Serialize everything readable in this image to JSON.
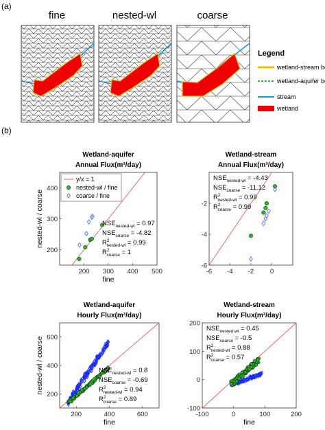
{
  "panel_a": {
    "label": "(a)",
    "mesh_titles": [
      "fine",
      "nested-wl",
      "coarse"
    ],
    "legend": {
      "title": "Legend",
      "items": [
        {
          "label": "wetland-stream boundary",
          "color": "#e8c400"
        },
        {
          "label": "wetland-aquifer boundary",
          "color": "#30c030"
        },
        {
          "label": "stream",
          "color": "#1f8fd0"
        },
        {
          "label": "wetland",
          "color": "#ee0000"
        }
      ]
    }
  },
  "panel_b": {
    "label": "(b)"
  },
  "chart_data": [
    {
      "type": "scatter",
      "title": "Wetland-aquifer",
      "subtitle": "Annual Flux(m³/day)",
      "xlabel": "fine",
      "ylabel": "nested-wl / coarse",
      "xlim": [
        100,
        500
      ],
      "ylim": [
        150,
        450
      ],
      "xticks": [
        200,
        300,
        400,
        500
      ],
      "yticks": [
        200,
        300,
        400
      ],
      "legend": {
        "placement": "top-left",
        "entries": [
          "y/x = 1",
          "nested-wl / fine",
          "coarse / fine"
        ]
      },
      "series": [
        {
          "name": "nested-wl / fine",
          "marker": "circle",
          "color": "#2ab52a",
          "points": [
            [
              180,
              170
            ],
            [
              205,
              208
            ],
            [
              225,
              232
            ],
            [
              232,
              235
            ],
            [
              275,
              280
            ]
          ]
        },
        {
          "name": "coarse / fine",
          "marker": "diamond",
          "color": "#4060ff",
          "points": [
            [
              182,
              215
            ],
            [
              210,
              252
            ],
            [
              220,
              290
            ],
            [
              232,
              305
            ],
            [
              235,
              308
            ],
            [
              280,
              373
            ]
          ]
        }
      ],
      "annotations": [
        {
          "main": "NSE",
          "sub": "nested-wl",
          "value": " = 0.97"
        },
        {
          "main": "NSE",
          "sub": "coarse",
          "value": " = -4.82"
        },
        {
          "main": "R",
          "sup": "2",
          "sub": "nested-wl",
          "value": " = 0.99"
        },
        {
          "main": "R",
          "sup": "2",
          "sub": "coarse",
          "value": " = 1"
        }
      ]
    },
    {
      "type": "scatter",
      "title": "Wetland-stream",
      "subtitle": "Annual Flux(m³/day)",
      "xlabel": "",
      "ylabel": "",
      "xlim": [
        -6,
        2
      ],
      "ylim": [
        -6,
        0
      ],
      "xticks": [
        -6,
        -4,
        -2,
        0
      ],
      "yticks": [
        -6,
        -4,
        -2
      ],
      "series": [
        {
          "name": "nested-wl / fine",
          "marker": "circle",
          "color": "#2ab52a",
          "points": [
            [
              -2,
              -4.1
            ],
            [
              -0.8,
              -2.6
            ],
            [
              -0.6,
              -2.3
            ],
            [
              -0.5,
              -2.0
            ],
            [
              0.3,
              -0.9
            ]
          ]
        },
        {
          "name": "coarse / fine",
          "marker": "diamond",
          "color": "#4060ff",
          "points": [
            [
              -2,
              -5.6
            ],
            [
              -0.8,
              -3.3
            ],
            [
              -0.6,
              -3.0
            ],
            [
              -0.5,
              -2.8
            ],
            [
              -0.3,
              -2.5
            ],
            [
              0.3,
              -1.1
            ]
          ]
        }
      ],
      "annotations": [
        {
          "main": "NSE",
          "sub": "nested-wl",
          "value": " = -4.43"
        },
        {
          "main": "NSE",
          "sub": "coarse",
          "value": " = -11.12"
        },
        {
          "main": "R",
          "sup": "2",
          "sub": "nested-wl",
          "value": " = 0.99"
        },
        {
          "main": "R",
          "sup": "2",
          "sub": "coarse",
          "value": " = 0.99"
        }
      ]
    },
    {
      "type": "scatter",
      "title": "Wetland-aquifer",
      "subtitle": "Hourly Flux(m³/day)",
      "xlabel": "fine",
      "ylabel": "nested-wl / coarse",
      "xlim": [
        100,
        700
      ],
      "ylim": [
        100,
        700
      ],
      "xticks": [
        200,
        400,
        600
      ],
      "yticks": [
        200,
        400,
        600
      ],
      "series": [
        {
          "name": "coarse / fine",
          "marker": "diamond",
          "color": "#1a2cff",
          "clusters": [
            {
              "x0": 150,
              "y0": 135,
              "x1": 390,
              "y1": 560,
              "n": 170,
              "spread": 16,
              "seed": 7
            }
          ]
        },
        {
          "name": "nested-wl / fine",
          "marker": "circle",
          "color": "#2ab52a",
          "clusters": [
            {
              "x0": 150,
              "y0": 135,
              "x1": 395,
              "y1": 385,
              "n": 130,
              "spread": 9,
              "seed": 3
            }
          ]
        }
      ],
      "annotations": [
        {
          "main": "NSE",
          "sub": "nested-wl",
          "value": " = 0.8"
        },
        {
          "main": "NSE",
          "sub": "coarse",
          "value": " = -0.69"
        },
        {
          "main": "R",
          "sup": "2",
          "sub": "nested-wl",
          "value": " = 0.94"
        },
        {
          "main": "R",
          "sup": "2",
          "sub": "coarse",
          "value": " = 0.89"
        }
      ]
    },
    {
      "type": "scatter",
      "title": "Wetland-stream",
      "subtitle": "Hourly Flux(m³/day)",
      "xlabel": "fine",
      "ylabel": "",
      "xlim": [
        -100,
        200
      ],
      "ylim": [
        -100,
        200
      ],
      "xticks": [
        -100,
        0,
        100,
        200
      ],
      "yticks": [
        -100,
        0,
        100,
        200
      ],
      "series": [
        {
          "name": "coarse / fine",
          "marker": "diamond",
          "color": "#1a2cff",
          "clusters": [
            {
              "x0": -8,
              "y0": -18,
              "x1": 90,
              "y1": 20,
              "n": 110,
              "spread": 4,
              "seed": 11
            }
          ]
        },
        {
          "name": "nested-wl / fine",
          "marker": "circle",
          "color": "#2ab52a",
          "clusters": [
            {
              "x0": -8,
              "y0": -16,
              "x1": 80,
              "y1": 70,
              "n": 150,
              "spread": 8,
              "seed": 5
            }
          ]
        }
      ],
      "annotations": [
        {
          "main": "NSE",
          "sub": "nested-wl",
          "value": " = 0.45"
        },
        {
          "main": "NSE",
          "sub": "coarse",
          "value": " = -0.5"
        },
        {
          "main": "R",
          "sup": "2",
          "sub": "nested-wl",
          "value": " = 0.88"
        },
        {
          "main": "R",
          "sup": "2",
          "sub": "coarse",
          "value": " = 0.57"
        }
      ]
    }
  ]
}
